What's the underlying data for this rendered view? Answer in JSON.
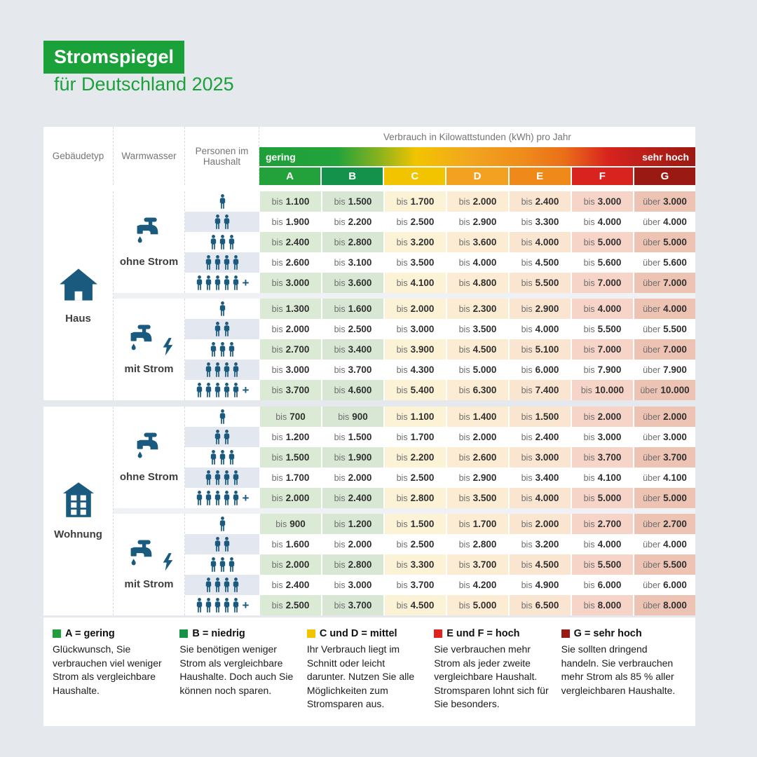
{
  "page": {
    "title_badge": "Stromspiegel",
    "subtitle": "für Deutschland 2025"
  },
  "colors": {
    "brand_green": "#1ba13a",
    "icon_blue": "#1a5a7e",
    "page_background": "#e5e8ed",
    "alt_row": "#e3e7ef"
  },
  "chart_data": {
    "type": "table",
    "unit_title": "Verbrauch in Kilowattstunden (kWh) pro Jahr",
    "scale": {
      "low": "gering",
      "high": "sehr hoch"
    },
    "row_headers": [
      "Gebäudetyp",
      "Warmwasser",
      "Personen im Haushalt"
    ],
    "classes": [
      {
        "label": "A",
        "color": "#23a23b",
        "tint": "#dbead4"
      },
      {
        "label": "B",
        "color": "#14914a",
        "tint": "#d7e7d3"
      },
      {
        "label": "C",
        "color": "#f2c400",
        "tint": "#fcf3d7"
      },
      {
        "label": "D",
        "color": "#f2a120",
        "tint": "#fcecd3"
      },
      {
        "label": "E",
        "color": "#ef8a1a",
        "tint": "#fae5d1"
      },
      {
        "label": "F",
        "color": "#d8231f",
        "tint": "#f6d4c8"
      },
      {
        "label": "G",
        "color": "#9a1a13",
        "tint": "#edc3b3"
      }
    ],
    "groups": [
      {
        "building": "Haus",
        "icon": "house-icon",
        "subgroups": [
          {
            "warmwasser": "ohne Strom",
            "electric": false,
            "rows": [
              {
                "persons": "1",
                "values": [
                  "bis 1.100",
                  "bis 1.500",
                  "bis 1.700",
                  "bis 2.000",
                  "bis 2.400",
                  "bis 3.000",
                  "über 3.000"
                ]
              },
              {
                "persons": "2",
                "values": [
                  "bis 1.900",
                  "bis 2.200",
                  "bis 2.500",
                  "bis 2.900",
                  "bis 3.300",
                  "bis 4.000",
                  "über 4.000"
                ]
              },
              {
                "persons": "3",
                "values": [
                  "bis 2.400",
                  "bis 2.800",
                  "bis 3.200",
                  "bis 3.600",
                  "bis 4.000",
                  "bis 5.000",
                  "über 5.000"
                ]
              },
              {
                "persons": "4",
                "values": [
                  "bis 2.600",
                  "bis 3.100",
                  "bis 3.500",
                  "bis 4.000",
                  "bis 4.500",
                  "bis 5.600",
                  "über 5.600"
                ]
              },
              {
                "persons": "5+",
                "values": [
                  "bis 3.000",
                  "bis 3.600",
                  "bis 4.100",
                  "bis 4.800",
                  "bis 5.500",
                  "bis 7.000",
                  "über 7.000"
                ]
              }
            ]
          },
          {
            "warmwasser": "mit Strom",
            "electric": true,
            "rows": [
              {
                "persons": "1",
                "values": [
                  "bis 1.300",
                  "bis 1.600",
                  "bis 2.000",
                  "bis 2.300",
                  "bis 2.900",
                  "bis 4.000",
                  "über 4.000"
                ]
              },
              {
                "persons": "2",
                "values": [
                  "bis 2.000",
                  "bis 2.500",
                  "bis 3.000",
                  "bis 3.500",
                  "bis 4.000",
                  "bis 5.500",
                  "über 5.500"
                ]
              },
              {
                "persons": "3",
                "values": [
                  "bis 2.700",
                  "bis 3.400",
                  "bis 3.900",
                  "bis 4.500",
                  "bis 5.100",
                  "bis 7.000",
                  "über 7.000"
                ]
              },
              {
                "persons": "4",
                "values": [
                  "bis 3.000",
                  "bis 3.700",
                  "bis 4.300",
                  "bis 5.000",
                  "bis 6.000",
                  "bis 7.900",
                  "über 7.900"
                ]
              },
              {
                "persons": "5+",
                "values": [
                  "bis 3.700",
                  "bis 4.600",
                  "bis 5.400",
                  "bis 6.300",
                  "bis 7.400",
                  "bis 10.000",
                  "über 10.000"
                ]
              }
            ]
          }
        ]
      },
      {
        "building": "Wohnung",
        "icon": "apartment-icon",
        "subgroups": [
          {
            "warmwasser": "ohne Strom",
            "electric": false,
            "rows": [
              {
                "persons": "1",
                "values": [
                  "bis 700",
                  "bis 900",
                  "bis 1.100",
                  "bis 1.400",
                  "bis 1.500",
                  "bis 2.000",
                  "über 2.000"
                ]
              },
              {
                "persons": "2",
                "values": [
                  "bis 1.200",
                  "bis 1.500",
                  "bis 1.700",
                  "bis 2.000",
                  "bis 2.400",
                  "bis 3.000",
                  "über 3.000"
                ]
              },
              {
                "persons": "3",
                "values": [
                  "bis 1.500",
                  "bis 1.900",
                  "bis 2.200",
                  "bis 2.600",
                  "bis 3.000",
                  "bis 3.700",
                  "über 3.700"
                ]
              },
              {
                "persons": "4",
                "values": [
                  "bis 1.700",
                  "bis 2.000",
                  "bis 2.500",
                  "bis 2.900",
                  "bis 3.400",
                  "bis 4.100",
                  "über 4.100"
                ]
              },
              {
                "persons": "5+",
                "values": [
                  "bis 2.000",
                  "bis 2.400",
                  "bis 2.800",
                  "bis 3.500",
                  "bis 4.000",
                  "bis 5.000",
                  "über 5.000"
                ]
              }
            ]
          },
          {
            "warmwasser": "mit Strom",
            "electric": true,
            "rows": [
              {
                "persons": "1",
                "values": [
                  "bis 900",
                  "bis 1.200",
                  "bis 1.500",
                  "bis 1.700",
                  "bis 2.000",
                  "bis 2.700",
                  "über 2.700"
                ]
              },
              {
                "persons": "2",
                "values": [
                  "bis 1.600",
                  "bis 2.000",
                  "bis 2.500",
                  "bis 2.800",
                  "bis 3.200",
                  "bis 4.000",
                  "über 4.000"
                ]
              },
              {
                "persons": "3",
                "values": [
                  "bis 2.000",
                  "bis 2.800",
                  "bis 3.300",
                  "bis 3.700",
                  "bis 4.500",
                  "bis 5.500",
                  "über 5.500"
                ]
              },
              {
                "persons": "4",
                "values": [
                  "bis 2.400",
                  "bis 3.000",
                  "bis 3.700",
                  "bis 4.200",
                  "bis 4.900",
                  "bis 6.000",
                  "über 6.000"
                ]
              },
              {
                "persons": "5+",
                "values": [
                  "bis 2.500",
                  "bis 3.700",
                  "bis 4.500",
                  "bis 5.000",
                  "bis 6.500",
                  "bis 8.000",
                  "über 8.000"
                ]
              }
            ]
          }
        ]
      }
    ]
  },
  "legend": [
    {
      "color": "#1f9e3a",
      "title": "A = gering",
      "text": "Glückwunsch, Sie verbrauchen viel weniger Strom als vergleichbare Haushalte."
    },
    {
      "color": "#189245",
      "title": "B = niedrig",
      "text": "Sie benötigen weniger Strom als vergleichbare Haushalte. Doch auch Sie können noch sparen."
    },
    {
      "color": "#f2c400",
      "title": "C und D = mittel",
      "text": "Ihr Verbrauch liegt im Schnitt oder leicht darunter. Nutzen Sie alle Möglichkeiten zum Stromsparen aus."
    },
    {
      "color": "#de231f",
      "title": "E und F = hoch",
      "text": "Sie verbrauchen mehr Strom als jeder zweite vergleichbare Haushalt. Stromsparen lohnt sich für Sie besonders."
    },
    {
      "color": "#9a1a13",
      "title": "G = sehr hoch",
      "text": "Sie sollten dringend handeln. Sie verbrauchen mehr Strom als 85 % aller vergleichbaren Haushalte."
    }
  ]
}
